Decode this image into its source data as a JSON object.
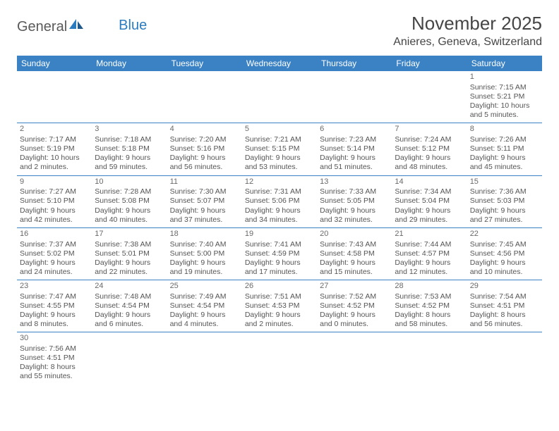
{
  "logo": {
    "part1": "General",
    "part2": "Blue"
  },
  "header": {
    "month_title": "November 2025",
    "location": "Anieres, Geneva, Switzerland"
  },
  "colors": {
    "header_bar": "#3b82c4",
    "text": "#555555",
    "title": "#454545"
  },
  "weekdays": [
    "Sunday",
    "Monday",
    "Tuesday",
    "Wednesday",
    "Thursday",
    "Friday",
    "Saturday"
  ],
  "weeks": [
    [
      null,
      null,
      null,
      null,
      null,
      null,
      {
        "n": "1",
        "sunrise": "Sunrise: 7:15 AM",
        "sunset": "Sunset: 5:21 PM",
        "day1": "Daylight: 10 hours",
        "day2": "and 5 minutes."
      }
    ],
    [
      {
        "n": "2",
        "sunrise": "Sunrise: 7:17 AM",
        "sunset": "Sunset: 5:19 PM",
        "day1": "Daylight: 10 hours",
        "day2": "and 2 minutes."
      },
      {
        "n": "3",
        "sunrise": "Sunrise: 7:18 AM",
        "sunset": "Sunset: 5:18 PM",
        "day1": "Daylight: 9 hours",
        "day2": "and 59 minutes."
      },
      {
        "n": "4",
        "sunrise": "Sunrise: 7:20 AM",
        "sunset": "Sunset: 5:16 PM",
        "day1": "Daylight: 9 hours",
        "day2": "and 56 minutes."
      },
      {
        "n": "5",
        "sunrise": "Sunrise: 7:21 AM",
        "sunset": "Sunset: 5:15 PM",
        "day1": "Daylight: 9 hours",
        "day2": "and 53 minutes."
      },
      {
        "n": "6",
        "sunrise": "Sunrise: 7:23 AM",
        "sunset": "Sunset: 5:14 PM",
        "day1": "Daylight: 9 hours",
        "day2": "and 51 minutes."
      },
      {
        "n": "7",
        "sunrise": "Sunrise: 7:24 AM",
        "sunset": "Sunset: 5:12 PM",
        "day1": "Daylight: 9 hours",
        "day2": "and 48 minutes."
      },
      {
        "n": "8",
        "sunrise": "Sunrise: 7:26 AM",
        "sunset": "Sunset: 5:11 PM",
        "day1": "Daylight: 9 hours",
        "day2": "and 45 minutes."
      }
    ],
    [
      {
        "n": "9",
        "sunrise": "Sunrise: 7:27 AM",
        "sunset": "Sunset: 5:10 PM",
        "day1": "Daylight: 9 hours",
        "day2": "and 42 minutes."
      },
      {
        "n": "10",
        "sunrise": "Sunrise: 7:28 AM",
        "sunset": "Sunset: 5:08 PM",
        "day1": "Daylight: 9 hours",
        "day2": "and 40 minutes."
      },
      {
        "n": "11",
        "sunrise": "Sunrise: 7:30 AM",
        "sunset": "Sunset: 5:07 PM",
        "day1": "Daylight: 9 hours",
        "day2": "and 37 minutes."
      },
      {
        "n": "12",
        "sunrise": "Sunrise: 7:31 AM",
        "sunset": "Sunset: 5:06 PM",
        "day1": "Daylight: 9 hours",
        "day2": "and 34 minutes."
      },
      {
        "n": "13",
        "sunrise": "Sunrise: 7:33 AM",
        "sunset": "Sunset: 5:05 PM",
        "day1": "Daylight: 9 hours",
        "day2": "and 32 minutes."
      },
      {
        "n": "14",
        "sunrise": "Sunrise: 7:34 AM",
        "sunset": "Sunset: 5:04 PM",
        "day1": "Daylight: 9 hours",
        "day2": "and 29 minutes."
      },
      {
        "n": "15",
        "sunrise": "Sunrise: 7:36 AM",
        "sunset": "Sunset: 5:03 PM",
        "day1": "Daylight: 9 hours",
        "day2": "and 27 minutes."
      }
    ],
    [
      {
        "n": "16",
        "sunrise": "Sunrise: 7:37 AM",
        "sunset": "Sunset: 5:02 PM",
        "day1": "Daylight: 9 hours",
        "day2": "and 24 minutes."
      },
      {
        "n": "17",
        "sunrise": "Sunrise: 7:38 AM",
        "sunset": "Sunset: 5:01 PM",
        "day1": "Daylight: 9 hours",
        "day2": "and 22 minutes."
      },
      {
        "n": "18",
        "sunrise": "Sunrise: 7:40 AM",
        "sunset": "Sunset: 5:00 PM",
        "day1": "Daylight: 9 hours",
        "day2": "and 19 minutes."
      },
      {
        "n": "19",
        "sunrise": "Sunrise: 7:41 AM",
        "sunset": "Sunset: 4:59 PM",
        "day1": "Daylight: 9 hours",
        "day2": "and 17 minutes."
      },
      {
        "n": "20",
        "sunrise": "Sunrise: 7:43 AM",
        "sunset": "Sunset: 4:58 PM",
        "day1": "Daylight: 9 hours",
        "day2": "and 15 minutes."
      },
      {
        "n": "21",
        "sunrise": "Sunrise: 7:44 AM",
        "sunset": "Sunset: 4:57 PM",
        "day1": "Daylight: 9 hours",
        "day2": "and 12 minutes."
      },
      {
        "n": "22",
        "sunrise": "Sunrise: 7:45 AM",
        "sunset": "Sunset: 4:56 PM",
        "day1": "Daylight: 9 hours",
        "day2": "and 10 minutes."
      }
    ],
    [
      {
        "n": "23",
        "sunrise": "Sunrise: 7:47 AM",
        "sunset": "Sunset: 4:55 PM",
        "day1": "Daylight: 9 hours",
        "day2": "and 8 minutes."
      },
      {
        "n": "24",
        "sunrise": "Sunrise: 7:48 AM",
        "sunset": "Sunset: 4:54 PM",
        "day1": "Daylight: 9 hours",
        "day2": "and 6 minutes."
      },
      {
        "n": "25",
        "sunrise": "Sunrise: 7:49 AM",
        "sunset": "Sunset: 4:54 PM",
        "day1": "Daylight: 9 hours",
        "day2": "and 4 minutes."
      },
      {
        "n": "26",
        "sunrise": "Sunrise: 7:51 AM",
        "sunset": "Sunset: 4:53 PM",
        "day1": "Daylight: 9 hours",
        "day2": "and 2 minutes."
      },
      {
        "n": "27",
        "sunrise": "Sunrise: 7:52 AM",
        "sunset": "Sunset: 4:52 PM",
        "day1": "Daylight: 9 hours",
        "day2": "and 0 minutes."
      },
      {
        "n": "28",
        "sunrise": "Sunrise: 7:53 AM",
        "sunset": "Sunset: 4:52 PM",
        "day1": "Daylight: 8 hours",
        "day2": "and 58 minutes."
      },
      {
        "n": "29",
        "sunrise": "Sunrise: 7:54 AM",
        "sunset": "Sunset: 4:51 PM",
        "day1": "Daylight: 8 hours",
        "day2": "and 56 minutes."
      }
    ],
    [
      {
        "n": "30",
        "sunrise": "Sunrise: 7:56 AM",
        "sunset": "Sunset: 4:51 PM",
        "day1": "Daylight: 8 hours",
        "day2": "and 55 minutes."
      },
      null,
      null,
      null,
      null,
      null,
      null
    ]
  ]
}
